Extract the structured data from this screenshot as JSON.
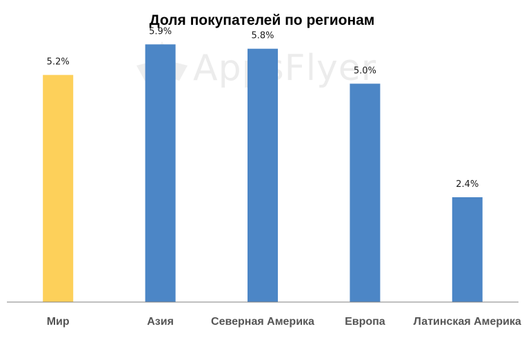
{
  "title": "Доля покупателей по регионам",
  "watermark": {
    "text": "AppsFlyer",
    "icon": "appsflyer-logo-icon",
    "color": "#ececec"
  },
  "chart_data": {
    "type": "bar",
    "title": "Доля покупателей по регионам",
    "xlabel": "",
    "ylabel": "",
    "ylim": [
      0,
      6.6
    ],
    "grid": false,
    "categories": [
      "Мир",
      "Азия",
      "Северная Америка",
      "Европа",
      "Латинская Америка"
    ],
    "values": [
      5.2,
      5.9,
      5.8,
      5.0,
      2.4
    ],
    "data_labels": [
      "5.2%",
      "5.9%",
      "5.8%",
      "5.0%",
      "2.4%"
    ],
    "colors": [
      "#FDD05A",
      "#4C86C6",
      "#4C86C6",
      "#4C86C6",
      "#4C86C6"
    ],
    "axis_color": "#7f7f7f"
  }
}
